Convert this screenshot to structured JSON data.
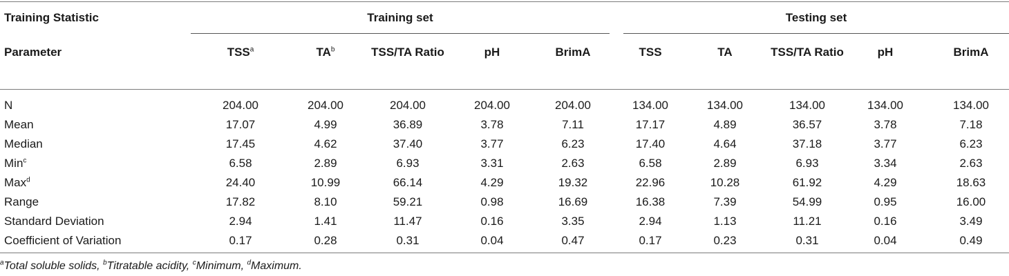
{
  "table": {
    "stat_header": "Training Statistic",
    "param_header": "Parameter",
    "groups": [
      "Training set",
      "Testing set"
    ],
    "columns": [
      {
        "label": "TSS",
        "sup": "a"
      },
      {
        "label": "TA",
        "sup": "b"
      },
      {
        "label": "TSS/TA Ratio",
        "sup": ""
      },
      {
        "label": "pH",
        "sup": ""
      },
      {
        "label": "BrimA",
        "sup": ""
      },
      {
        "label": "TSS",
        "sup": ""
      },
      {
        "label": "TA",
        "sup": ""
      },
      {
        "label": "TSS/TA Ratio",
        "sup": ""
      },
      {
        "label": "pH",
        "sup": ""
      },
      {
        "label": "BrimA",
        "sup": ""
      }
    ],
    "rows": [
      {
        "label": "N",
        "sup": "",
        "values": [
          "204.00",
          "204.00",
          "204.00",
          "204.00",
          "204.00",
          "134.00",
          "134.00",
          "134.00",
          "134.00",
          "134.00"
        ]
      },
      {
        "label": "Mean",
        "sup": "",
        "values": [
          "17.07",
          "4.99",
          "36.89",
          "3.78",
          "7.11",
          "17.17",
          "4.89",
          "36.57",
          "3.78",
          "7.18"
        ]
      },
      {
        "label": "Median",
        "sup": "",
        "values": [
          "17.45",
          "4.62",
          "37.40",
          "3.77",
          "6.23",
          "17.40",
          "4.64",
          "37.18",
          "3.77",
          "6.23"
        ]
      },
      {
        "label": "Min",
        "sup": "c",
        "values": [
          "6.58",
          "2.89",
          "6.93",
          "3.31",
          "2.63",
          "6.58",
          "2.89",
          "6.93",
          "3.34",
          "2.63"
        ]
      },
      {
        "label": "Max",
        "sup": "d",
        "values": [
          "24.40",
          "10.99",
          "66.14",
          "4.29",
          "19.32",
          "22.96",
          "10.28",
          "61.92",
          "4.29",
          "18.63"
        ]
      },
      {
        "label": "Range",
        "sup": "",
        "values": [
          "17.82",
          "8.10",
          "59.21",
          "0.98",
          "16.69",
          "16.38",
          "7.39",
          "54.99",
          "0.95",
          "16.00"
        ]
      },
      {
        "label": "Standard Deviation",
        "sup": "",
        "values": [
          "2.94",
          "1.41",
          "11.47",
          "0.16",
          "3.35",
          "2.94",
          "1.13",
          "11.21",
          "0.16",
          "3.49"
        ]
      },
      {
        "label": "Coefficient of Variation",
        "sup": "",
        "values": [
          "0.17",
          "0.28",
          "0.31",
          "0.04",
          "0.47",
          "0.17",
          "0.23",
          "0.31",
          "0.04",
          "0.49"
        ]
      }
    ]
  },
  "footnote": [
    {
      "sup": "a",
      "text": "Total soluble solids, "
    },
    {
      "sup": "b",
      "text": "Titratable acidity, "
    },
    {
      "sup": "c",
      "text": "Minimum, "
    },
    {
      "sup": "d",
      "text": "Maximum."
    }
  ]
}
